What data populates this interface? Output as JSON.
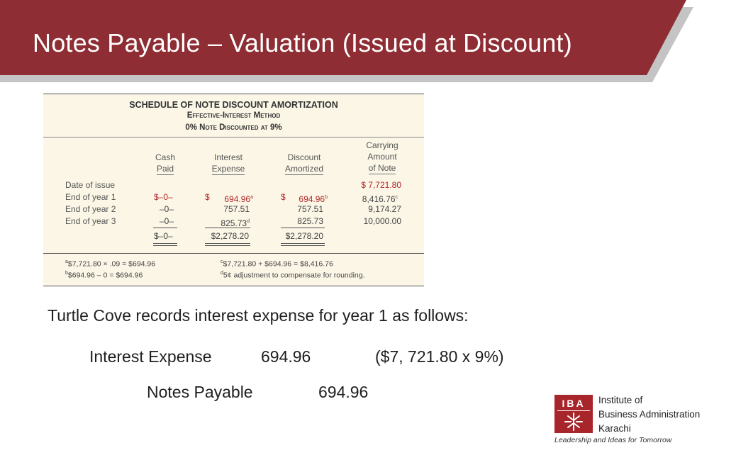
{
  "header": {
    "title": "Notes Payable – Valuation (Issued at Discount)",
    "banner_color": "#8e2d33",
    "shadow_color": "#bdbdbd"
  },
  "schedule": {
    "title": "SCHEDULE OF NOTE DISCOUNT AMORTIZATION",
    "subtitle1": "Effective-Interest Method",
    "subtitle2": "0% Note Discounted at 9%",
    "columns": [
      {
        "line1": "Cash",
        "line2": "Paid"
      },
      {
        "line1": "Interest",
        "line2": "Expense"
      },
      {
        "line1": "Discount",
        "line2": "Amortized"
      },
      {
        "line1": "Carrying",
        "line2": "Amount",
        "line3": "of Note"
      }
    ],
    "rows": [
      {
        "label": "Date of issue",
        "cash": "",
        "interest": "",
        "discount": "",
        "carrying": "$ 7,721.80"
      },
      {
        "label": "End of year 1",
        "cash": "$–0–",
        "interest_prefix": "$",
        "interest": "694.96",
        "interest_note": "a",
        "discount_prefix": "$",
        "discount": "694.96",
        "discount_note": "b",
        "carrying": "8,416.76",
        "carrying_note": "c"
      },
      {
        "label": "End of year 2",
        "cash": "–0–",
        "interest": "757.51",
        "discount": "757.51",
        "carrying": "9,174.27"
      },
      {
        "label": "End of year 3",
        "cash": "–0–",
        "interest": "825.73",
        "interest_note": "d",
        "discount": "825.73",
        "carrying": "10,000.00"
      }
    ],
    "totals": {
      "cash": "$–0–",
      "interest": "$2,278.20",
      "discount": "$2,278.20"
    },
    "footnotes": [
      {
        "mark": "a",
        "text": "$7,721.80 × .09 = $694.96"
      },
      {
        "mark": "b",
        "text": "$694.96 – 0 = $694.96"
      },
      {
        "mark": "c",
        "text": "$7,721.80 + $694.96 = $8,416.76"
      },
      {
        "mark": "d",
        "text": "5¢ adjustment to compensate for rounding."
      }
    ],
    "highlight_color": "#b4272b"
  },
  "body": {
    "intro": "Turtle Cove records interest expense for year 1 as follows:",
    "debit_account": "Interest Expense",
    "debit_amount": "694.96",
    "calc_note": "($7, 721.80 x 9%)",
    "credit_account": "Notes Payable",
    "credit_amount": "694.96"
  },
  "logo": {
    "mark": "IBA",
    "line1": "Institute of",
    "line2": "Business Administration",
    "line3": "Karachi",
    "tagline": "Leadership and Ideas for Tomorrow",
    "color": "#a8262b"
  }
}
